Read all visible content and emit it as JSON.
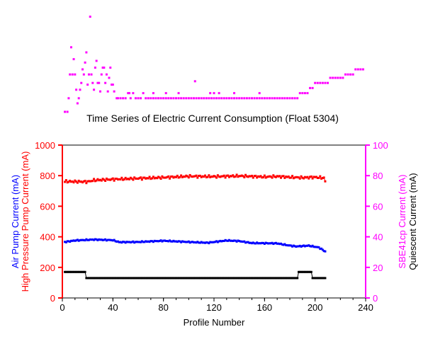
{
  "chart_data": [
    {
      "type": "scatter",
      "title": "",
      "note": "Top panel: SBE41cp current markers (magenta), no axes drawn",
      "xlim": [
        0,
        240
      ],
      "ylim": [
        10,
        16
      ],
      "series": [
        {
          "color": "#ff00ff",
          "points": [
            [
              2,
              10
            ],
            [
              4,
              10
            ],
            [
              5,
              10.8
            ],
            [
              6,
              12.2
            ],
            [
              7,
              13.8
            ],
            [
              8,
              12.2
            ],
            [
              9,
              13.1
            ],
            [
              10,
              12.2
            ],
            [
              11,
              11.3
            ],
            [
              12,
              10.5
            ],
            [
              13,
              10.8
            ],
            [
              14,
              11.3
            ],
            [
              15,
              11.7
            ],
            [
              16,
              12.5
            ],
            [
              17,
              12.2
            ],
            [
              18,
              12.9
            ],
            [
              19,
              13.5
            ],
            [
              20,
              11.6
            ],
            [
              21,
              12.2
            ],
            [
              22,
              15.6
            ],
            [
              23,
              12.2
            ],
            [
              24,
              11.7
            ],
            [
              25,
              11.3
            ],
            [
              26,
              12.6
            ],
            [
              27,
              13.0
            ],
            [
              28,
              11.7
            ],
            [
              29,
              11.7
            ],
            [
              30,
              11.2
            ],
            [
              31,
              12.2
            ],
            [
              32,
              12.6
            ],
            [
              33,
              12.6
            ],
            [
              34,
              11.7
            ],
            [
              35,
              12.2
            ],
            [
              36,
              11.2
            ],
            [
              37,
              12.0
            ],
            [
              38,
              12.6
            ],
            [
              39,
              11.6
            ],
            [
              40,
              11.6
            ],
            [
              41,
              11.2
            ],
            [
              43,
              10.8
            ],
            [
              44,
              10.8
            ],
            [
              46,
              10.8
            ],
            [
              48,
              10.8
            ],
            [
              50,
              10.8
            ],
            [
              52,
              11.1
            ],
            [
              54,
              10.8
            ],
            [
              56,
              11.1
            ],
            [
              58,
              10.8
            ],
            [
              60,
              10.8
            ],
            [
              62,
              10.8
            ],
            [
              64,
              11.1
            ],
            [
              66,
              10.8
            ],
            [
              68,
              10.8
            ],
            [
              70,
              10.8
            ],
            [
              72,
              10.8
            ],
            [
              74,
              10.8
            ],
            [
              76,
              10.8
            ],
            [
              78,
              10.8
            ],
            [
              80,
              10.8
            ],
            [
              82,
              10.8
            ],
            [
              84,
              10.8
            ],
            [
              86,
              10.8
            ],
            [
              88,
              10.8
            ],
            [
              90,
              10.8
            ],
            [
              92,
              10.8
            ],
            [
              94,
              10.8
            ],
            [
              96,
              10.8
            ],
            [
              98,
              10.8
            ],
            [
              100,
              10.8
            ],
            [
              102,
              10.8
            ],
            [
              104,
              10.8
            ],
            [
              106,
              10.8
            ],
            [
              108,
              10.8
            ],
            [
              110,
              10.8
            ],
            [
              112,
              10.8
            ],
            [
              114,
              10.8
            ],
            [
              116,
              10.8
            ],
            [
              118,
              10.8
            ],
            [
              120,
              10.8
            ],
            [
              122,
              10.8
            ],
            [
              124,
              10.8
            ],
            [
              126,
              10.8
            ],
            [
              128,
              10.8
            ],
            [
              130,
              10.8
            ],
            [
              132,
              10.8
            ],
            [
              134,
              10.8
            ],
            [
              136,
              10.8
            ],
            [
              138,
              10.8
            ],
            [
              140,
              10.8
            ],
            [
              142,
              10.8
            ],
            [
              144,
              10.8
            ],
            [
              146,
              10.8
            ],
            [
              148,
              10.8
            ],
            [
              150,
              10.8
            ],
            [
              152,
              10.8
            ],
            [
              154,
              10.8
            ],
            [
              156,
              10.8
            ],
            [
              158,
              10.8
            ],
            [
              160,
              10.8
            ],
            [
              162,
              10.8
            ],
            [
              164,
              10.8
            ],
            [
              166,
              10.8
            ],
            [
              168,
              10.8
            ],
            [
              170,
              10.8
            ],
            [
              172,
              10.8
            ],
            [
              174,
              10.8
            ],
            [
              176,
              10.8
            ],
            [
              178,
              10.8
            ],
            [
              180,
              10.8
            ],
            [
              182,
              10.8
            ],
            [
              184,
              10.8
            ],
            [
              186,
              10.8
            ],
            [
              188,
              11.1
            ],
            [
              190,
              11.1
            ],
            [
              192,
              11.1
            ],
            [
              194,
              11.1
            ],
            [
              196,
              11.4
            ],
            [
              198,
              11.4
            ],
            [
              200,
              11.7
            ],
            [
              202,
              11.7
            ],
            [
              204,
              11.7
            ],
            [
              206,
              11.7
            ],
            [
              208,
              11.7
            ],
            [
              210,
              11.7
            ],
            [
              212,
              12.0
            ],
            [
              214,
              12.0
            ],
            [
              216,
              12.0
            ],
            [
              218,
              12.0
            ],
            [
              220,
              12.0
            ],
            [
              222,
              12.0
            ],
            [
              224,
              12.2
            ],
            [
              226,
              12.2
            ],
            [
              228,
              12.2
            ],
            [
              230,
              12.2
            ],
            [
              232,
              12.5
            ],
            [
              234,
              12.5
            ],
            [
              236,
              12.5
            ],
            [
              238,
              12.5
            ],
            [
              53,
              11.1
            ],
            [
              72,
              11.1
            ],
            [
              82,
              11.1
            ],
            [
              92,
              11.1
            ],
            [
              105,
              11.8
            ],
            [
              117,
              11.1
            ],
            [
              120,
              11.1
            ],
            [
              124,
              11.1
            ],
            [
              136,
              11.1
            ],
            [
              156,
              11.1
            ]
          ]
        }
      ]
    },
    {
      "type": "scatter",
      "title": "Time Series of Electric Current Consumption (Float 5304)",
      "xlabel": "Profile Number",
      "xlim": [
        0,
        240
      ],
      "xticks": [
        "0",
        "40",
        "80",
        "120",
        "160",
        "200",
        "240"
      ],
      "ylabel_left": [
        "Air Pump Current (mA)",
        "High Pressure Pump Current (mA)"
      ],
      "ylim_left": [
        0,
        1000
      ],
      "yticks_left": [
        "0",
        "200",
        "400",
        "600",
        "800",
        "1000"
      ],
      "ylabel_right": [
        "SBE41cp Current (mA)",
        "Quiescent Current (mA)"
      ],
      "ylim_right": [
        0,
        100
      ],
      "yticks_right": [
        "0",
        "20",
        "40",
        "60",
        "80",
        "100"
      ],
      "grid": false,
      "series": [
        {
          "color": "#ff0000",
          "axis": "left",
          "segments": [
            [
              2,
              762
            ],
            [
              20,
              760
            ],
            [
              25,
              770
            ],
            [
              40,
              776
            ],
            [
              60,
              782
            ],
            [
              80,
              788
            ],
            [
              100,
              796
            ],
            [
              120,
              794
            ],
            [
              140,
              798
            ],
            [
              160,
              792
            ],
            [
              170,
              795
            ],
            [
              180,
              790
            ],
            [
              190,
              787
            ],
            [
              200,
              790
            ],
            [
              207,
              785
            ],
            [
              208,
              762
            ]
          ],
          "jitter": 9
        },
        {
          "color": "#0000ff",
          "axis": "left",
          "segments": [
            [
              2,
              366
            ],
            [
              10,
              376
            ],
            [
              25,
              382
            ],
            [
              40,
              378
            ],
            [
              45,
              365
            ],
            [
              60,
              366
            ],
            [
              80,
              374
            ],
            [
              100,
              366
            ],
            [
              115,
              361
            ],
            [
              130,
              376
            ],
            [
              140,
              372
            ],
            [
              150,
              359
            ],
            [
              170,
              357
            ],
            [
              178,
              345
            ],
            [
              185,
              337
            ],
            [
              195,
              342
            ],
            [
              203,
              330
            ],
            [
              208,
              304
            ]
          ],
          "jitter": 4
        },
        {
          "color": "#000000",
          "axis": "right",
          "segments": [
            [
              2,
              17
            ],
            [
              18,
              17
            ],
            [
              19,
              13
            ],
            [
              186,
              13
            ],
            [
              187,
              17
            ],
            [
              197,
              17
            ],
            [
              198,
              13
            ],
            [
              208,
              13
            ]
          ],
          "jitter": 0
        }
      ]
    }
  ]
}
